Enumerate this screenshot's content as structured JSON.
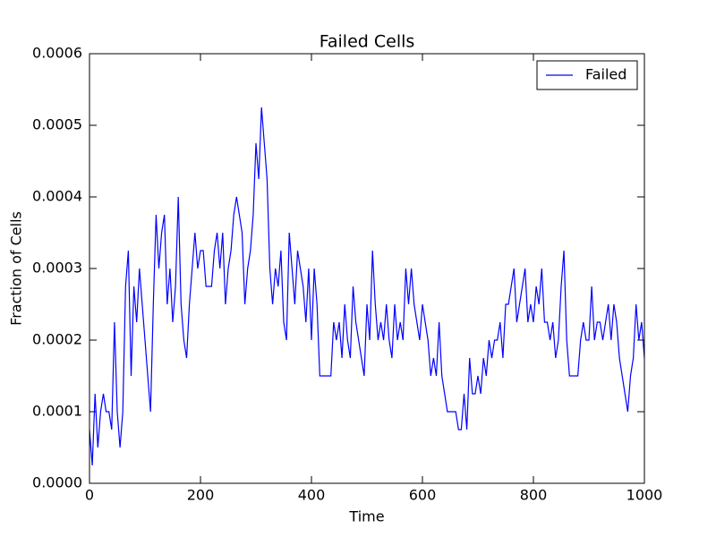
{
  "chart_data": {
    "type": "line",
    "title": "Failed Cells",
    "x_label": "Time",
    "y_label": "Fraction of Cells",
    "xlim": [
      0,
      1000
    ],
    "ylim": [
      0,
      0.0006
    ],
    "xticks": [
      0,
      200,
      400,
      600,
      800,
      1000
    ],
    "yticks": [
      {
        "value": 0,
        "label": "0.0000"
      },
      {
        "value": 0.0001,
        "label": "0.0001"
      },
      {
        "value": 0.0002,
        "label": "0.0002"
      },
      {
        "value": 0.0003,
        "label": "0.0003"
      },
      {
        "value": 0.0004,
        "label": "0.0004"
      },
      {
        "value": 0.0005,
        "label": "0.0005"
      },
      {
        "value": 0.0006,
        "label": "0.0006"
      }
    ],
    "legend": "upper right",
    "x": [
      0,
      5,
      10,
      15,
      20,
      25,
      30,
      35,
      40,
      45,
      50,
      55,
      60,
      65,
      70,
      75,
      80,
      85,
      90,
      95,
      100,
      105,
      110,
      115,
      120,
      125,
      130,
      135,
      140,
      145,
      150,
      155,
      160,
      165,
      170,
      175,
      180,
      185,
      190,
      195,
      200,
      205,
      210,
      215,
      220,
      225,
      230,
      235,
      240,
      245,
      250,
      255,
      260,
      265,
      270,
      275,
      280,
      285,
      290,
      295,
      300,
      305,
      310,
      315,
      320,
      325,
      330,
      335,
      340,
      345,
      350,
      355,
      360,
      365,
      370,
      375,
      380,
      385,
      390,
      395,
      400,
      405,
      410,
      415,
      420,
      425,
      430,
      435,
      440,
      445,
      450,
      455,
      460,
      465,
      470,
      475,
      480,
      485,
      490,
      495,
      500,
      505,
      510,
      515,
      520,
      525,
      530,
      535,
      540,
      545,
      550,
      555,
      560,
      565,
      570,
      575,
      580,
      585,
      590,
      595,
      600,
      605,
      610,
      615,
      620,
      625,
      630,
      635,
      640,
      645,
      650,
      655,
      660,
      665,
      670,
      675,
      680,
      685,
      690,
      695,
      700,
      705,
      710,
      715,
      720,
      725,
      730,
      735,
      740,
      745,
      750,
      755,
      760,
      765,
      770,
      775,
      780,
      785,
      790,
      795,
      800,
      805,
      810,
      815,
      820,
      825,
      830,
      835,
      840,
      845,
      850,
      855,
      860,
      865,
      870,
      875,
      880,
      885,
      890,
      895,
      900,
      905,
      910,
      915,
      920,
      925,
      930,
      935,
      940,
      945,
      950,
      955,
      960,
      965,
      970,
      975,
      980,
      985,
      990,
      995,
      1000
    ],
    "series": [
      {
        "name": "Failed",
        "color": "#0000ff",
        "values": [
          7.5e-05,
          2.5e-05,
          0.000125,
          5e-05,
          0.0001,
          0.000125,
          0.0001,
          0.0001,
          7.5e-05,
          0.000225,
          0.0001,
          5e-05,
          0.0001,
          0.000275,
          0.000325,
          0.00015,
          0.000275,
          0.000225,
          0.0003,
          0.00025,
          0.0002,
          0.00015,
          0.0001,
          0.00025,
          0.000375,
          0.0003,
          0.00035,
          0.000375,
          0.00025,
          0.0003,
          0.000225,
          0.000275,
          0.0004,
          0.00025,
          0.0002,
          0.000175,
          0.00025,
          0.0003,
          0.00035,
          0.0003,
          0.000325,
          0.000325,
          0.000275,
          0.000275,
          0.000275,
          0.000325,
          0.00035,
          0.0003,
          0.00035,
          0.00025,
          0.0003,
          0.000325,
          0.000375,
          0.0004,
          0.000375,
          0.00035,
          0.00025,
          0.0003,
          0.000325,
          0.000375,
          0.000475,
          0.000425,
          0.000525,
          0.000475,
          0.000425,
          0.0003,
          0.00025,
          0.0003,
          0.000275,
          0.000325,
          0.000225,
          0.0002,
          0.00035,
          0.0003,
          0.00025,
          0.000325,
          0.0003,
          0.000275,
          0.000225,
          0.0003,
          0.0002,
          0.0003,
          0.00025,
          0.00015,
          0.00015,
          0.00015,
          0.00015,
          0.00015,
          0.000225,
          0.0002,
          0.000225,
          0.000175,
          0.00025,
          0.0002,
          0.000175,
          0.000275,
          0.000225,
          0.0002,
          0.000175,
          0.00015,
          0.00025,
          0.0002,
          0.000325,
          0.00025,
          0.0002,
          0.000225,
          0.0002,
          0.00025,
          0.0002,
          0.000175,
          0.00025,
          0.0002,
          0.000225,
          0.0002,
          0.0003,
          0.00025,
          0.0003,
          0.00025,
          0.000225,
          0.0002,
          0.00025,
          0.000225,
          0.0002,
          0.00015,
          0.000175,
          0.00015,
          0.000225,
          0.00015,
          0.000125,
          0.0001,
          0.0001,
          0.0001,
          0.0001,
          7.5e-05,
          7.5e-05,
          0.000125,
          7.5e-05,
          0.000175,
          0.000125,
          0.000125,
          0.00015,
          0.000125,
          0.000175,
          0.00015,
          0.0002,
          0.000175,
          0.0002,
          0.0002,
          0.000225,
          0.000175,
          0.00025,
          0.00025,
          0.000275,
          0.0003,
          0.000225,
          0.00025,
          0.000275,
          0.0003,
          0.000225,
          0.00025,
          0.000225,
          0.000275,
          0.00025,
          0.0003,
          0.000225,
          0.000225,
          0.0002,
          0.000225,
          0.000175,
          0.0002,
          0.000275,
          0.000325,
          0.0002,
          0.00015,
          0.00015,
          0.00015,
          0.00015,
          0.0002,
          0.000225,
          0.0002,
          0.0002,
          0.000275,
          0.0002,
          0.000225,
          0.000225,
          0.0002,
          0.000225,
          0.00025,
          0.0002,
          0.00025,
          0.000225,
          0.000175,
          0.00015,
          0.000125,
          0.0001,
          0.00015,
          0.000175,
          0.00025,
          0.0002,
          0.000225,
          0.000175
        ]
      }
    ]
  }
}
